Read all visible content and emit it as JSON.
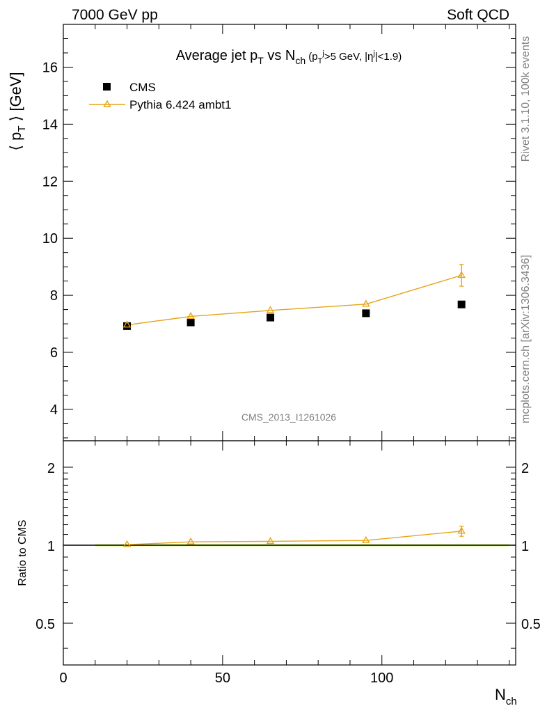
{
  "header": {
    "left": "7000 GeV pp",
    "right": "Soft QCD"
  },
  "side_labels": {
    "top": "Rivet 3.1.10,  100k events",
    "bottom": "mcplots.cern.ch [arXiv:1306.3436]"
  },
  "watermark": "CMS_2013_I1261026",
  "colors": {
    "mc": "#e8a317",
    "data": "#000000",
    "band_inner": "#aaee66",
    "band_outer": "#eeffaa"
  },
  "chart_data": [
    {
      "type": "scatter",
      "title": {
        "main": "Average jet p",
        "main_sub": "T",
        "vs": " vs N",
        "vs_sub": "ch",
        "cut_open": " (p",
        "cut_sub": "T",
        "cut_sup": "j",
        "cut_mid": ">5 GeV, |η",
        "cut_sup2": "j",
        "cut_close": "|<1.9)"
      },
      "ylabel": {
        "open": "⟨ p",
        "sub": "T",
        "close": " ⟩ [GeV]"
      },
      "xlim": [
        0,
        142
      ],
      "ylim": [
        2.9,
        17.5
      ],
      "yticks": [
        4,
        6,
        8,
        10,
        12,
        14,
        16
      ],
      "ytick_labels": [
        "4",
        "6",
        "8",
        "10",
        "12",
        "14",
        "16"
      ],
      "legend_position": "top-left",
      "series": [
        {
          "name": "CMS",
          "marker": "square",
          "x": [
            20,
            40,
            65,
            95,
            125
          ],
          "y": [
            6.92,
            7.05,
            7.22,
            7.37,
            7.68
          ]
        },
        {
          "name": "Pythia 6.424 ambt1",
          "marker": "triangle",
          "x": [
            20,
            40,
            65,
            95,
            125
          ],
          "y": [
            6.96,
            7.26,
            7.47,
            7.69,
            8.7
          ],
          "yerr": [
            0.05,
            0.05,
            0.05,
            0.06,
            0.38
          ]
        }
      ]
    },
    {
      "type": "line",
      "ylabel": "Ratio to CMS",
      "xlabel": {
        "main": "N",
        "sub": "ch"
      },
      "xlim": [
        0,
        142
      ],
      "ylim": [
        0.345,
        2.53
      ],
      "log_y": true,
      "xticks": [
        0,
        50,
        100
      ],
      "xtick_labels": [
        "0",
        "50",
        "100"
      ],
      "yticks": [
        0.5,
        1,
        2
      ],
      "ytick_labels": [
        "0.5",
        "1",
        "2"
      ],
      "band_x": [
        10,
        140
      ],
      "series": [
        {
          "name": "Pythia 6.424 ambt1",
          "x": [
            20,
            40,
            65,
            95,
            125
          ],
          "y": [
            1.005,
            1.03,
            1.035,
            1.043,
            1.133
          ],
          "yerr": [
            0.008,
            0.008,
            0.008,
            0.009,
            0.05
          ]
        }
      ]
    }
  ]
}
